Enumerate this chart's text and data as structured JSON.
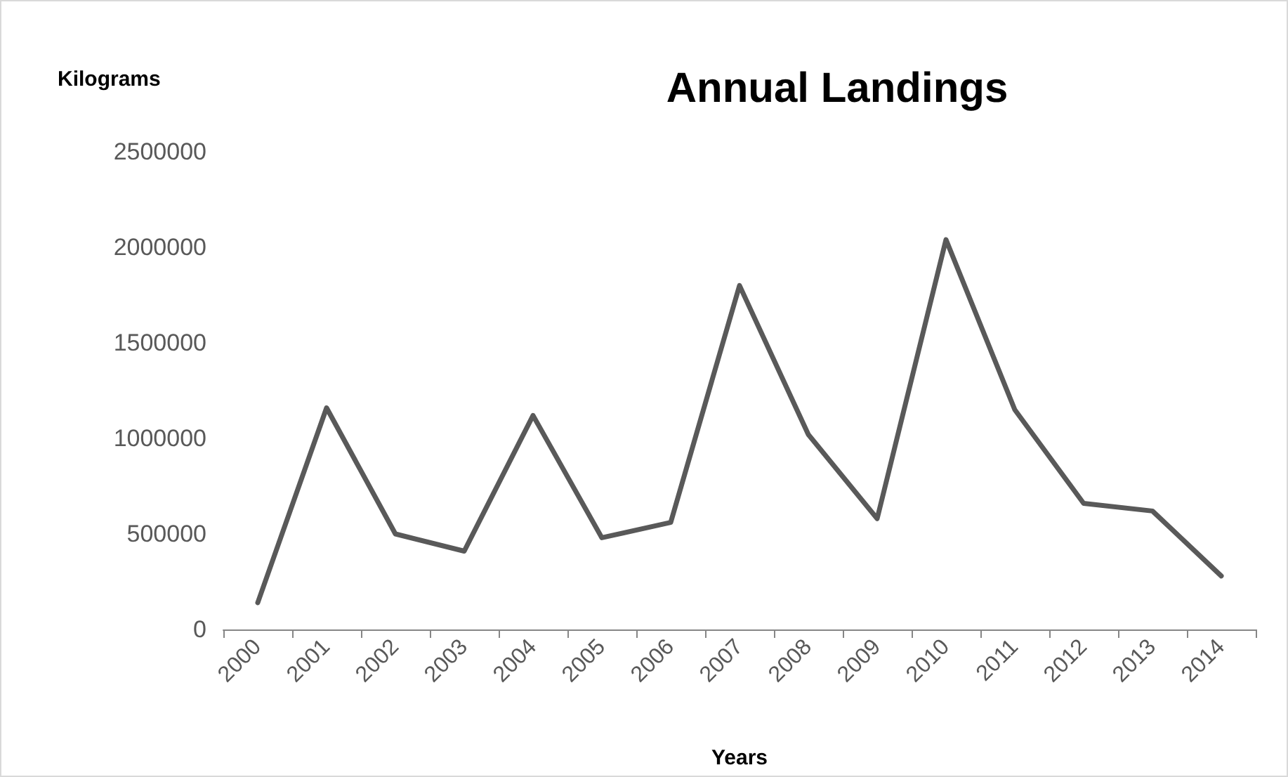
{
  "chart_data": {
    "type": "line",
    "title": "Annual Landings",
    "xlabel": "Years",
    "ylabel": "Kilograms",
    "categories": [
      "2000",
      "2001",
      "2002",
      "2003",
      "2004",
      "2005",
      "2006",
      "2007",
      "2008",
      "2009",
      "2010",
      "2011",
      "2012",
      "2013",
      "2014"
    ],
    "series": [
      {
        "color": "#595959",
        "values": [
          140000,
          1160000,
          500000,
          410000,
          1120000,
          480000,
          560000,
          1800000,
          1020000,
          580000,
          2040000,
          1150000,
          660000,
          620000,
          280000
        ]
      }
    ],
    "ylim": [
      0,
      2500000
    ],
    "yticks": [
      0,
      500000,
      1000000,
      1500000,
      2000000,
      2500000
    ],
    "grid": false,
    "marker": "none",
    "line_style": "solid"
  }
}
